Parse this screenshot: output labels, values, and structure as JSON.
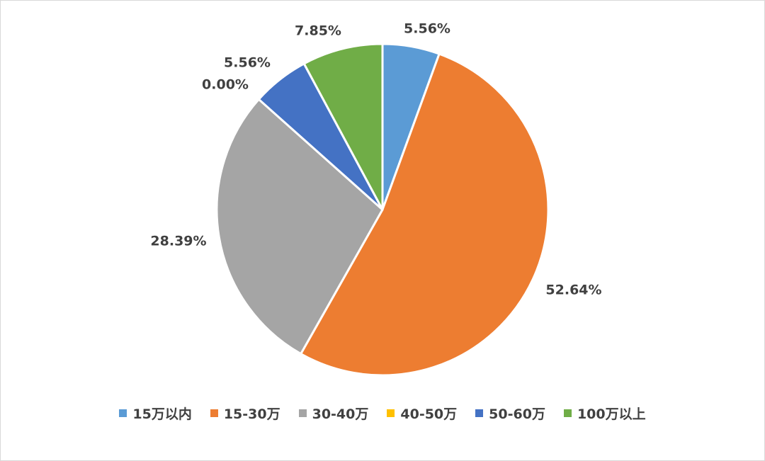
{
  "chart_data": {
    "type": "pie",
    "title": "",
    "legend_position": "bottom",
    "slices": [
      {
        "name": "15万以内",
        "value": 5.56,
        "label": "5.56%",
        "color": "#5B9BD5"
      },
      {
        "name": "15-30万",
        "value": 52.64,
        "label": "52.64%",
        "color": "#ED7D31"
      },
      {
        "name": "30-40万",
        "value": 28.39,
        "label": "28.39%",
        "color": "#A5A5A5"
      },
      {
        "name": "40-50万",
        "value": 0.0,
        "label": "0.00%",
        "color": "#FFC000"
      },
      {
        "name": "50-60万",
        "value": 5.56,
        "label": "5.56%",
        "color": "#4472C4"
      },
      {
        "name": "100万以上",
        "value": 7.85,
        "label": "7.85%",
        "color": "#70AD47"
      }
    ]
  }
}
